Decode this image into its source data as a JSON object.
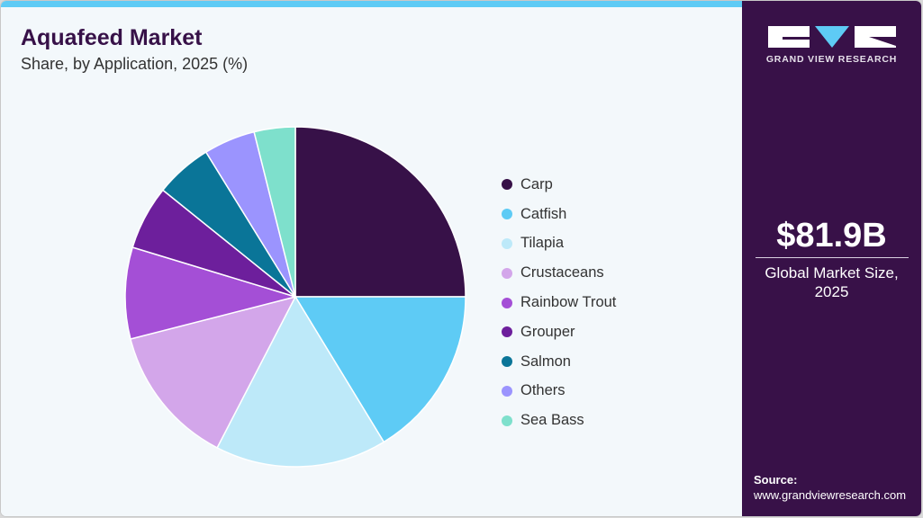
{
  "header": {
    "title": "Aquafeed Market",
    "subtitle": "Share, by Application, 2025 (%)"
  },
  "sidebar": {
    "logo_text": "GRAND VIEW RESEARCH",
    "market_value": "$81.9B",
    "market_label_line1": "Global Market Size,",
    "market_label_line2": "2025",
    "source_label": "Source:",
    "source_url": "www.grandviewresearch.com"
  },
  "colors": {
    "accent_bar": "#5ecbf5",
    "sidebar_bg": "#381148",
    "title": "#371148"
  },
  "chart_data": {
    "type": "pie",
    "title": "Aquafeed Market",
    "subtitle": "Share, by Application, 2025 (%)",
    "start_angle": "12 o'clock, clockwise",
    "legend_position": "right",
    "categories": [
      "Carp",
      "Catfish",
      "Tilapia",
      "Crustaceans",
      "Rainbow Trout",
      "Grouper",
      "Salmon",
      "Others",
      "Sea Bass"
    ],
    "values": [
      25.0,
      16.3,
      16.3,
      13.4,
      8.7,
      6.1,
      5.4,
      4.9,
      3.9
    ],
    "colors": [
      "#371148",
      "#5ecbf5",
      "#bde9f9",
      "#d3a6ea",
      "#a44fd6",
      "#6d1f9c",
      "#0a7598",
      "#9b94fe",
      "#7ee0cc"
    ]
  },
  "legend": {
    "items": [
      {
        "label": "Carp",
        "color": "#371148"
      },
      {
        "label": "Catfish",
        "color": "#5ecbf5"
      },
      {
        "label": "Tilapia",
        "color": "#bde9f9"
      },
      {
        "label": "Crustaceans",
        "color": "#d3a6ea"
      },
      {
        "label": "Rainbow Trout",
        "color": "#a44fd6"
      },
      {
        "label": "Grouper",
        "color": "#6d1f9c"
      },
      {
        "label": "Salmon",
        "color": "#0a7598"
      },
      {
        "label": "Others",
        "color": "#9b94fe"
      },
      {
        "label": "Sea Bass",
        "color": "#7ee0cc"
      }
    ]
  }
}
